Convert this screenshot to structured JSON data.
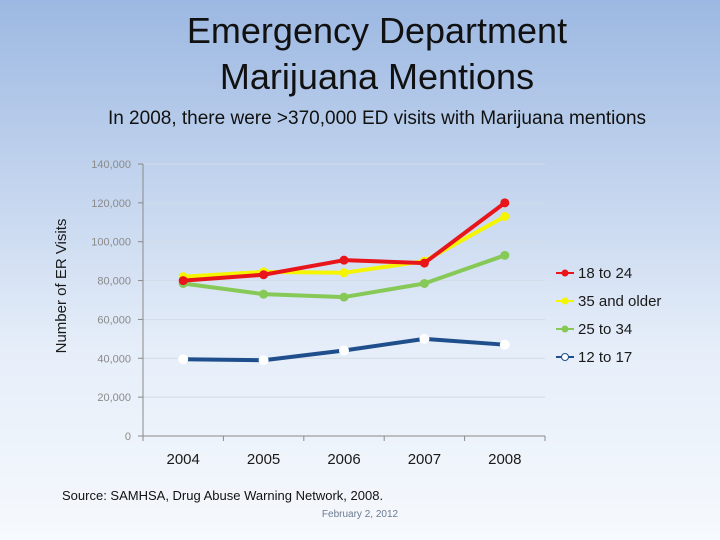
{
  "slide": {
    "title": "Emergency Department\nMarijuana Mentions",
    "subtitle": "In 2008, there were >370,000 ED visits with Marijuana mentions",
    "source": "Source: SAMHSA, Drug Abuse Warning Network, 2008.",
    "date": "February 2, 2012"
  },
  "chart_data": {
    "type": "line",
    "x": [
      "2004",
      "2005",
      "2006",
      "2007",
      "2008"
    ],
    "ylabel": "Number of ER Visits",
    "xlabel": "",
    "ylim": [
      0,
      140000
    ],
    "yticks": [
      0,
      20000,
      40000,
      60000,
      80000,
      100000,
      120000,
      140000
    ],
    "ytick_labels": [
      "0",
      "20,000",
      "40,000",
      "60,000",
      "80,000",
      "100,000",
      "120,000",
      "140,000"
    ],
    "grid": true,
    "legend_position": "right",
    "series": [
      {
        "name": "18 to 24",
        "color": "#e8151b",
        "values": [
          80000,
          83000,
          90500,
          89000,
          120000
        ]
      },
      {
        "name": "35 and older",
        "color": "#f5f500",
        "values": [
          82000,
          84500,
          84000,
          90000,
          113000
        ]
      },
      {
        "name": "25 to 34",
        "color": "#86c956",
        "values": [
          78500,
          73000,
          71500,
          78500,
          93000
        ]
      },
      {
        "name": "12 to 17",
        "color": "#1f4e8c",
        "values": [
          39500,
          39000,
          44000,
          50000,
          47000
        ]
      }
    ]
  }
}
